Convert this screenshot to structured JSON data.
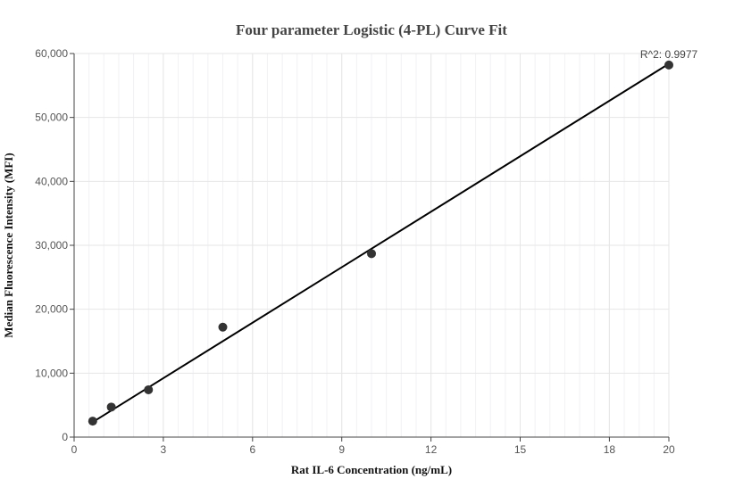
{
  "chart_data": {
    "type": "scatter",
    "title": "Four parameter Logistic (4-PL) Curve Fit",
    "xlabel": "Rat IL-6 Concentration (ng/mL)",
    "ylabel": "Median Fluorescence Intensity (MFI)",
    "xlim": [
      0,
      20
    ],
    "ylim": [
      0,
      60000
    ],
    "xticks": [
      0,
      3,
      6,
      9,
      12,
      15,
      18,
      20
    ],
    "yticks": [
      0,
      10000,
      20000,
      30000,
      40000,
      50000,
      60000
    ],
    "xtick_labels": [
      "0",
      "3",
      "6",
      "9",
      "12",
      "15",
      "18",
      "20"
    ],
    "ytick_labels": [
      "0",
      "10,000",
      "20,000",
      "30,000",
      "40,000",
      "50,000",
      "60,000"
    ],
    "grid": true,
    "annotation": "R^2: 0.9977",
    "points": [
      {
        "x": 0.625,
        "y": 2500
      },
      {
        "x": 1.25,
        "y": 4700
      },
      {
        "x": 2.5,
        "y": 7400
      },
      {
        "x": 5,
        "y": 17200
      },
      {
        "x": 10,
        "y": 28700
      },
      {
        "x": 20,
        "y": 58200
      }
    ],
    "fit_curve": [
      {
        "x": 0.625,
        "y": 2350
      },
      {
        "x": 20,
        "y": 58400
      }
    ],
    "colors": {
      "points": "#333333",
      "fit": "#000000",
      "grid": "#e6e6e6",
      "axis": "#444444"
    }
  }
}
